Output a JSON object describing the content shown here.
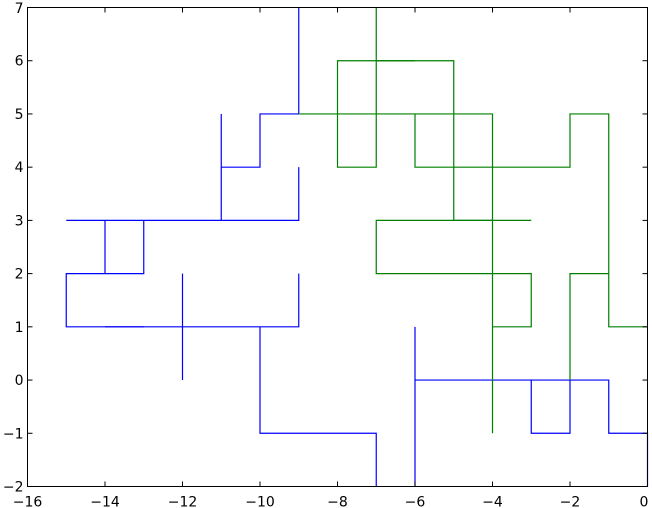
{
  "chart_data": {
    "type": "line",
    "title": "",
    "xlabel": "",
    "ylabel": "",
    "xlim": [
      -16,
      0
    ],
    "ylim": [
      -2,
      7
    ],
    "xticks": [
      -16,
      -14,
      -12,
      -10,
      -8,
      -6,
      -4,
      -2,
      0
    ],
    "yticks": [
      -2,
      -1,
      0,
      1,
      2,
      3,
      4,
      5,
      6,
      7
    ],
    "xtick_labels": [
      "−16",
      "−14",
      "−12",
      "−10",
      "−8",
      "−6",
      "−4",
      "−2",
      "0"
    ],
    "ytick_labels": [
      "−2",
      "−1",
      "0",
      "1",
      "2",
      "3",
      "4",
      "5",
      "6",
      "7"
    ],
    "grid": false,
    "legend": "none",
    "series": [
      {
        "color": "#0000ff",
        "style": "random walk",
        "segments": [
          [
            [
              -9,
              7
            ],
            [
              -9,
              5
            ],
            [
              -10,
              5
            ],
            [
              -10,
              4
            ],
            [
              -11,
              4
            ],
            [
              -11,
              5
            ],
            [
              -11,
              3
            ],
            [
              -9,
              3
            ],
            [
              -9,
              4
            ]
          ],
          [
            [
              -11,
              3
            ],
            [
              -15,
              3
            ],
            [
              -14,
              3
            ],
            [
              -14,
              2
            ],
            [
              -13,
              2
            ],
            [
              -13,
              3
            ],
            [
              -13,
              2
            ],
            [
              -15,
              2
            ],
            [
              -15,
              1
            ],
            [
              -9,
              1
            ],
            [
              -9,
              2
            ]
          ],
          [
            [
              -14,
              1
            ],
            [
              -13,
              1
            ]
          ],
          [
            [
              -12,
              2
            ],
            [
              -12,
              0
            ]
          ],
          [
            [
              -10,
              1
            ],
            [
              -10,
              -1
            ],
            [
              -7,
              -1
            ],
            [
              -7,
              -2
            ]
          ],
          [
            [
              -6,
              -2
            ],
            [
              -6,
              1
            ],
            [
              -6,
              0
            ],
            [
              -1,
              0
            ],
            [
              -1,
              -1
            ],
            [
              0,
              -1
            ],
            [
              0,
              -2
            ]
          ],
          [
            [
              -3,
              0
            ],
            [
              -3,
              -1
            ],
            [
              -2,
              -1
            ],
            [
              -2,
              0
            ]
          ]
        ]
      },
      {
        "color": "#008000",
        "style": "random walk",
        "segments": [
          [
            [
              -9,
              5
            ],
            [
              -4,
              5
            ],
            [
              -4,
              -1
            ]
          ],
          [
            [
              -7,
              7
            ],
            [
              -7,
              4
            ],
            [
              -8,
              4
            ],
            [
              -8,
              6
            ],
            [
              -5,
              6
            ],
            [
              -5,
              3
            ],
            [
              -3,
              3
            ]
          ],
          [
            [
              -7,
              6
            ],
            [
              -6,
              6
            ]
          ],
          [
            [
              -6,
              5
            ],
            [
              -6,
              4
            ],
            [
              -2,
              4
            ],
            [
              -2,
              5
            ],
            [
              -1,
              5
            ],
            [
              -1,
              1
            ],
            [
              0,
              1
            ]
          ],
          [
            [
              -4,
              1
            ],
            [
              -3,
              1
            ],
            [
              -3,
              2
            ],
            [
              -7,
              2
            ],
            [
              -7,
              3
            ],
            [
              -4,
              3
            ]
          ],
          [
            [
              -2,
              0
            ],
            [
              -2,
              2
            ],
            [
              -1,
              2
            ]
          ]
        ]
      }
    ]
  }
}
